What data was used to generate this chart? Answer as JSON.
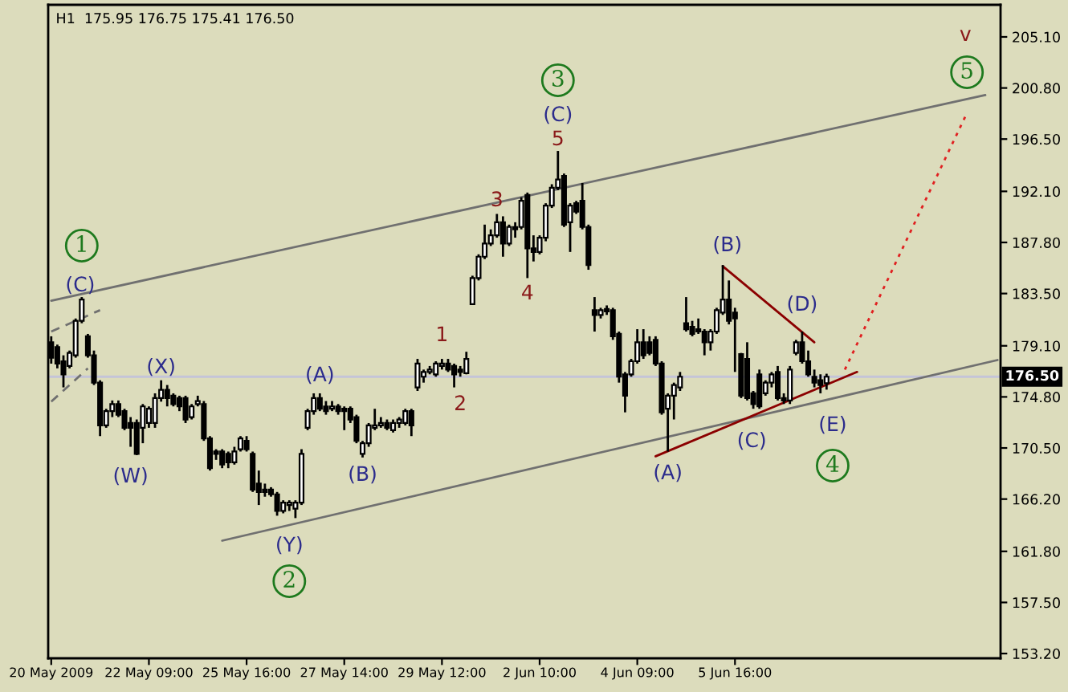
{
  "chart_data": {
    "type": "candlestick",
    "title": "H1  175.95 176.75 175.41 176.50",
    "categories": [
      "20 May 2009",
      null,
      null,
      null,
      null,
      null,
      null,
      null,
      null,
      null,
      null,
      null,
      null,
      null,
      null,
      null,
      "22 May 09:00",
      null,
      null,
      null,
      null,
      null,
      null,
      null,
      null,
      null,
      null,
      null,
      null,
      null,
      null,
      null,
      "25 May 16:00",
      null,
      null,
      null,
      null,
      null,
      null,
      null,
      null,
      null,
      null,
      null,
      null,
      null,
      null,
      null,
      "27 May 14:00",
      null,
      null,
      null,
      null,
      null,
      null,
      null,
      null,
      null,
      null,
      null,
      null,
      null,
      null,
      null,
      "29 May 12:00",
      null,
      null,
      null,
      null,
      null,
      null,
      null,
      null,
      null,
      null,
      null,
      null,
      null,
      null,
      null,
      "2 Jun 10:00",
      null,
      null,
      null,
      null,
      null,
      null,
      null,
      null,
      null,
      null,
      null,
      null,
      null,
      null,
      null,
      "4 Jun 09:00",
      null,
      null,
      null,
      null,
      null,
      null,
      null,
      null,
      null,
      null,
      null,
      null,
      null,
      null,
      null,
      "5 Jun 16:00",
      null,
      null,
      null,
      null,
      null,
      null,
      null,
      null,
      null,
      null,
      null,
      null,
      null,
      null,
      null,
      null,
      null,
      null,
      null,
      null,
      null,
      null,
      null,
      null,
      null,
      null,
      null,
      null,
      null,
      null,
      null,
      null,
      null,
      null,
      null,
      null,
      null,
      null,
      null,
      null,
      null,
      null,
      null
    ],
    "ohlc": [
      [
        179.4,
        179.9,
        177.6,
        178.1
      ],
      [
        179.0,
        179.2,
        177.2,
        177.6
      ],
      [
        177.8,
        178.3,
        175.6,
        176.7
      ],
      [
        177.4,
        178.7,
        177.2,
        178.5
      ],
      [
        178.3,
        181.4,
        178.1,
        181.2
      ],
      [
        181.2,
        183.2,
        181.0,
        183.0
      ],
      [
        179.9,
        180.1,
        178.1,
        178.3
      ],
      [
        178.3,
        178.7,
        175.8,
        176.0
      ],
      [
        176.0,
        176.2,
        171.5,
        172.4
      ],
      [
        172.4,
        173.8,
        172.2,
        173.6
      ],
      [
        173.6,
        174.5,
        173.1,
        174.2
      ],
      [
        174.2,
        174.5,
        173.1,
        173.3
      ],
      [
        173.6,
        173.8,
        172.0,
        172.2
      ],
      [
        172.6,
        173.1,
        170.6,
        172.2
      ],
      [
        172.6,
        172.9,
        169.9,
        170.0
      ],
      [
        172.2,
        174.2,
        170.9,
        174.0
      ],
      [
        172.6,
        174.0,
        172.2,
        173.8
      ],
      [
        172.6,
        175.1,
        172.2,
        174.7
      ],
      [
        174.7,
        176.2,
        174.4,
        175.4
      ],
      [
        175.4,
        175.8,
        174.0,
        174.7
      ],
      [
        174.9,
        175.1,
        174.0,
        174.2
      ],
      [
        174.7,
        174.9,
        173.6,
        174.0
      ],
      [
        174.7,
        174.9,
        172.6,
        172.9
      ],
      [
        173.1,
        174.2,
        172.9,
        174.0
      ],
      [
        174.2,
        174.9,
        174.0,
        174.45
      ],
      [
        174.2,
        174.45,
        171.1,
        171.3
      ],
      [
        171.3,
        171.5,
        168.6,
        168.8
      ],
      [
        170.2,
        170.4,
        169.5,
        170.0
      ],
      [
        170.2,
        170.4,
        168.8,
        169.1
      ],
      [
        170.0,
        170.2,
        168.8,
        169.3
      ],
      [
        169.3,
        170.6,
        169.1,
        170.2
      ],
      [
        170.4,
        171.5,
        170.2,
        171.3
      ],
      [
        171.1,
        171.5,
        170.2,
        170.4
      ],
      [
        170.0,
        170.2,
        166.8,
        167.0
      ],
      [
        167.5,
        168.6,
        165.7,
        166.8
      ],
      [
        167.0,
        167.5,
        166.4,
        166.8
      ],
      [
        167.0,
        167.2,
        166.4,
        166.6
      ],
      [
        166.6,
        166.8,
        164.8,
        165.2
      ],
      [
        165.2,
        166.1,
        165.0,
        165.9
      ],
      [
        165.7,
        166.1,
        165.2,
        165.9
      ],
      [
        165.4,
        166.1,
        164.6,
        165.9
      ],
      [
        165.9,
        170.4,
        165.7,
        170.0
      ],
      [
        172.2,
        173.8,
        172.0,
        173.6
      ],
      [
        173.6,
        175.1,
        173.3,
        174.7
      ],
      [
        174.7,
        175.1,
        173.6,
        173.8
      ],
      [
        174.0,
        174.45,
        173.3,
        173.6
      ],
      [
        173.8,
        174.45,
        173.6,
        174.0
      ],
      [
        174.0,
        174.2,
        173.3,
        173.6
      ],
      [
        173.8,
        174.0,
        172.0,
        173.6
      ],
      [
        173.8,
        174.0,
        172.6,
        172.9
      ],
      [
        173.1,
        173.3,
        170.9,
        171.1
      ],
      [
        170.0,
        171.1,
        169.7,
        170.9
      ],
      [
        170.9,
        172.6,
        170.6,
        172.4
      ],
      [
        172.2,
        173.8,
        172.0,
        172.4
      ],
      [
        172.4,
        173.1,
        172.2,
        172.6
      ],
      [
        172.6,
        172.9,
        172.0,
        172.2
      ],
      [
        172.0,
        172.9,
        171.8,
        172.6
      ],
      [
        172.6,
        173.1,
        172.2,
        172.9
      ],
      [
        172.6,
        173.8,
        172.4,
        173.6
      ],
      [
        173.6,
        173.8,
        171.5,
        172.4
      ],
      [
        175.6,
        178.0,
        175.3,
        177.6
      ],
      [
        176.5,
        177.1,
        176.0,
        176.9
      ],
      [
        176.9,
        177.4,
        176.7,
        177.1
      ],
      [
        176.7,
        177.8,
        176.5,
        177.6
      ],
      [
        177.4,
        178.0,
        177.1,
        177.6
      ],
      [
        177.6,
        178.0,
        176.9,
        177.1
      ],
      [
        177.4,
        177.6,
        175.6,
        176.7
      ],
      [
        177.1,
        177.4,
        176.5,
        176.9
      ],
      [
        176.8,
        178.6,
        176.7,
        178.0
      ],
      [
        182.6,
        185.0,
        182.6,
        184.8
      ],
      [
        184.8,
        186.8,
        184.6,
        186.6
      ],
      [
        186.6,
        189.3,
        186.4,
        187.7
      ],
      [
        187.7,
        188.9,
        187.5,
        188.4
      ],
      [
        188.4,
        190.2,
        188.2,
        189.5
      ],
      [
        189.5,
        190.0,
        186.6,
        187.7
      ],
      [
        187.7,
        189.3,
        187.5,
        189.1
      ],
      [
        189.1,
        189.5,
        188.2,
        188.9
      ],
      [
        189.1,
        191.6,
        188.9,
        191.3
      ],
      [
        191.8,
        192.0,
        184.8,
        187.3
      ],
      [
        187.3,
        188.4,
        186.2,
        187.0
      ],
      [
        187.0,
        188.4,
        186.8,
        188.2
      ],
      [
        188.2,
        191.1,
        187.9,
        190.9
      ],
      [
        190.9,
        192.7,
        190.7,
        192.4
      ],
      [
        192.4,
        195.5,
        192.2,
        193.1
      ],
      [
        193.4,
        193.6,
        189.1,
        189.3
      ],
      [
        189.5,
        191.1,
        187.0,
        190.9
      ],
      [
        191.1,
        191.3,
        190.2,
        190.4
      ],
      [
        191.3,
        192.8,
        188.9,
        189.1
      ],
      [
        189.1,
        189.3,
        185.5,
        185.9
      ],
      [
        182.1,
        183.2,
        180.3,
        181.7
      ],
      [
        181.7,
        182.3,
        181.4,
        182.1
      ],
      [
        182.2,
        182.5,
        181.7,
        182.0
      ],
      [
        182.1,
        182.3,
        179.6,
        179.9
      ],
      [
        180.1,
        180.3,
        176.0,
        176.5
      ],
      [
        176.7,
        176.9,
        173.5,
        174.9
      ],
      [
        176.7,
        178.0,
        176.5,
        177.8
      ],
      [
        177.8,
        180.5,
        177.6,
        179.4
      ],
      [
        179.4,
        180.5,
        178.0,
        178.3
      ],
      [
        179.4,
        179.9,
        178.3,
        178.5
      ],
      [
        179.6,
        179.9,
        177.4,
        177.6
      ],
      [
        177.6,
        177.8,
        173.3,
        173.5
      ],
      [
        173.8,
        175.1,
        170.2,
        174.9
      ],
      [
        174.9,
        176.0,
        172.9,
        175.8
      ],
      [
        175.6,
        176.9,
        175.3,
        176.5
      ],
      [
        181.0,
        183.2,
        180.3,
        180.5
      ],
      [
        180.7,
        181.2,
        179.9,
        180.1
      ],
      [
        180.5,
        181.4,
        180.1,
        180.3
      ],
      [
        180.3,
        180.5,
        178.3,
        179.4
      ],
      [
        179.4,
        180.5,
        178.7,
        180.3
      ],
      [
        180.3,
        182.3,
        180.1,
        182.1
      ],
      [
        181.9,
        185.9,
        181.7,
        183.0
      ],
      [
        183.0,
        184.6,
        180.9,
        181.2
      ],
      [
        181.9,
        182.3,
        176.9,
        181.4
      ],
      [
        178.4,
        178.5,
        174.7,
        174.9
      ],
      [
        178.0,
        179.4,
        174.5,
        174.7
      ],
      [
        175.1,
        175.3,
        173.8,
        174.2
      ],
      [
        176.7,
        177.1,
        173.8,
        174.0
      ],
      [
        175.1,
        176.2,
        174.9,
        176.0
      ],
      [
        176.0,
        176.9,
        175.6,
        176.7
      ],
      [
        176.9,
        177.4,
        174.5,
        174.7
      ],
      [
        174.7,
        175.1,
        174.2,
        174.5
      ],
      [
        174.5,
        177.4,
        174.2,
        177.1
      ],
      [
        178.5,
        179.6,
        178.3,
        179.4
      ],
      [
        179.4,
        180.3,
        177.6,
        177.8
      ],
      [
        177.8,
        178.7,
        176.5,
        176.7
      ],
      [
        176.5,
        177.1,
        175.6,
        176.0
      ],
      [
        176.2,
        176.7,
        175.1,
        175.8
      ],
      [
        175.95,
        176.75,
        175.41,
        176.5
      ],
      null,
      null,
      null,
      null,
      null,
      null,
      null,
      null,
      null,
      null,
      null,
      null,
      null,
      null,
      null,
      null,
      null,
      null,
      null,
      null,
      null,
      null,
      null,
      null,
      null,
      null,
      null,
      null
    ],
    "series": [
      {
        "type": "line",
        "color": "#707070",
        "line_style": "solid",
        "values": [
          182.9,
          null,
          null,
          null,
          null,
          null,
          null,
          null,
          null,
          null,
          null,
          null,
          null,
          null,
          null,
          null,
          null,
          null,
          null,
          null,
          null,
          null,
          null,
          null,
          null,
          null,
          null,
          null,
          null,
          null,
          null,
          null,
          null,
          null,
          null,
          null,
          null,
          null,
          null,
          null,
          null,
          null,
          null,
          null,
          null,
          null,
          null,
          null,
          null,
          null,
          null,
          null,
          null,
          null,
          null,
          null,
          null,
          null,
          null,
          null,
          null,
          null,
          null,
          null,
          null,
          null,
          null,
          null,
          null,
          null,
          null,
          null,
          null,
          null,
          null,
          null,
          null,
          null,
          null,
          null,
          null,
          null,
          null,
          null,
          null,
          null,
          null,
          null,
          null,
          null,
          null,
          null,
          null,
          null,
          null,
          null,
          null,
          null,
          null,
          null,
          null,
          null,
          null,
          null,
          null,
          null,
          null,
          null,
          null,
          null,
          null,
          null,
          null,
          null,
          null,
          null,
          null,
          null,
          null,
          null,
          null,
          null,
          null,
          null,
          null,
          null,
          null,
          null,
          null,
          null,
          null,
          null,
          null,
          null,
          null,
          null,
          null,
          null,
          null,
          null,
          null,
          null,
          null,
          null,
          null,
          null,
          null,
          null,
          null,
          null,
          null,
          null,
          null,
          200.2,
          null,
          null
        ]
      },
      {
        "type": "line",
        "color": "#707070",
        "line_style": "solid",
        "values": [
          null,
          null,
          null,
          null,
          null,
          null,
          null,
          null,
          null,
          null,
          null,
          null,
          null,
          null,
          null,
          null,
          null,
          null,
          null,
          null,
          null,
          null,
          null,
          null,
          null,
          null,
          null,
          null,
          162.7,
          null,
          null,
          null,
          null,
          null,
          null,
          null,
          null,
          null,
          null,
          null,
          null,
          null,
          null,
          null,
          null,
          null,
          null,
          null,
          null,
          null,
          null,
          null,
          null,
          null,
          null,
          null,
          null,
          null,
          null,
          null,
          null,
          null,
          null,
          null,
          null,
          null,
          null,
          null,
          null,
          null,
          null,
          null,
          null,
          null,
          null,
          null,
          null,
          null,
          null,
          null,
          null,
          null,
          null,
          null,
          null,
          null,
          null,
          null,
          null,
          null,
          null,
          null,
          null,
          null,
          null,
          null,
          null,
          null,
          null,
          null,
          null,
          null,
          null,
          null,
          null,
          null,
          null,
          null,
          null,
          null,
          null,
          null,
          null,
          null,
          null,
          null,
          null,
          null,
          null,
          null,
          null,
          null,
          null,
          null,
          null,
          null,
          null,
          null,
          null,
          null,
          null,
          null,
          null,
          null,
          null,
          null,
          null,
          null,
          null,
          null,
          null,
          null,
          null,
          null,
          null,
          null,
          null,
          null,
          null,
          null,
          null,
          null,
          null,
          null,
          null,
          177.9
        ]
      },
      {
        "type": "line",
        "color": "#707070",
        "line_style": "dashed",
        "values": [
          180.3,
          null,
          null,
          null,
          null,
          null,
          null,
          null,
          182.1,
          null,
          null,
          null,
          null,
          null,
          null,
          null,
          null,
          null,
          null,
          null,
          null,
          null,
          null,
          null,
          null,
          null,
          null,
          null,
          null,
          null,
          null,
          null,
          null,
          null,
          null,
          null,
          null,
          null,
          null,
          null,
          null,
          null,
          null,
          null,
          null,
          null,
          null,
          null,
          null,
          null,
          null,
          null,
          null,
          null,
          null,
          null,
          null,
          null,
          null,
          null,
          null,
          null,
          null,
          null,
          null,
          null,
          null,
          null,
          null,
          null,
          null,
          null,
          null,
          null,
          null,
          null,
          null,
          null,
          null,
          null,
          null,
          null,
          null,
          null,
          null,
          null,
          null,
          null,
          null,
          null,
          null,
          null,
          null,
          null,
          null,
          null,
          null,
          null,
          null,
          null,
          null,
          null,
          null,
          null,
          null,
          null,
          null,
          null,
          null,
          null,
          null,
          null,
          null,
          null,
          null,
          null,
          null,
          null,
          null,
          null,
          null,
          null,
          null,
          null,
          null,
          null,
          null,
          null,
          null,
          null,
          null,
          null,
          null,
          null,
          null,
          null,
          null,
          null,
          null,
          null,
          null,
          null,
          null,
          null,
          null,
          null,
          null,
          null,
          null,
          null,
          null,
          null,
          null,
          null,
          null,
          null
        ]
      },
      {
        "type": "line",
        "color": "#707070",
        "line_style": "dashed",
        "values": [
          174.4,
          null,
          null,
          null,
          null,
          null,
          177.2,
          null,
          null,
          null,
          null,
          null,
          null,
          null,
          null,
          null,
          null,
          null,
          null,
          null,
          null,
          null,
          null,
          null,
          null,
          null,
          null,
          null,
          null,
          null,
          null,
          null,
          null,
          null,
          null,
          null,
          null,
          null,
          null,
          null,
          null,
          null,
          null,
          null,
          null,
          null,
          null,
          null,
          null,
          null,
          null,
          null,
          null,
          null,
          null,
          null,
          null,
          null,
          null,
          null,
          null,
          null,
          null,
          null,
          null,
          null,
          null,
          null,
          null,
          null,
          null,
          null,
          null,
          null,
          null,
          null,
          null,
          null,
          null,
          null,
          null,
          null,
          null,
          null,
          null,
          null,
          null,
          null,
          null,
          null,
          null,
          null,
          null,
          null,
          null,
          null,
          null,
          null,
          null,
          null,
          null,
          null,
          null,
          null,
          null,
          null,
          null,
          null,
          null,
          null,
          null,
          null,
          null,
          null,
          null,
          null,
          null,
          null,
          null,
          null,
          null,
          null,
          null,
          null,
          null,
          null,
          null,
          null,
          null,
          null,
          null,
          null,
          null,
          null,
          null,
          null,
          null,
          null,
          null,
          null,
          null,
          null,
          null,
          null,
          null,
          null,
          null,
          null,
          null,
          null,
          null,
          null,
          null,
          null,
          null,
          null
        ]
      },
      {
        "type": "line",
        "color": "#8b0000",
        "line_style": "solid",
        "values": [
          null,
          null,
          null,
          null,
          null,
          null,
          null,
          null,
          null,
          null,
          null,
          null,
          null,
          null,
          null,
          null,
          null,
          null,
          null,
          null,
          null,
          null,
          null,
          null,
          null,
          null,
          null,
          null,
          null,
          null,
          null,
          null,
          null,
          null,
          null,
          null,
          null,
          null,
          null,
          null,
          null,
          null,
          null,
          null,
          null,
          null,
          null,
          null,
          null,
          null,
          null,
          null,
          null,
          null,
          null,
          null,
          null,
          null,
          null,
          null,
          null,
          null,
          null,
          null,
          null,
          null,
          null,
          null,
          null,
          null,
          null,
          null,
          null,
          null,
          null,
          null,
          null,
          null,
          null,
          null,
          null,
          null,
          null,
          null,
          null,
          null,
          null,
          null,
          null,
          null,
          null,
          null,
          null,
          null,
          null,
          null,
          null,
          null,
          null,
          null,
          null,
          null,
          null,
          null,
          null,
          null,
          null,
          null,
          null,
          null,
          185.8,
          null,
          null,
          null,
          null,
          null,
          null,
          null,
          null,
          null,
          null,
          null,
          null,
          null,
          null,
          179.4,
          null,
          null,
          null,
          null,
          null,
          null,
          null,
          null,
          null,
          null,
          null,
          null,
          null,
          null,
          null,
          null,
          null,
          null,
          null,
          null,
          null,
          null,
          null,
          null,
          null,
          null,
          null,
          null,
          null,
          null
        ]
      },
      {
        "type": "line",
        "color": "#8b0000",
        "line_style": "solid",
        "values": [
          null,
          null,
          null,
          null,
          null,
          null,
          null,
          null,
          null,
          null,
          null,
          null,
          null,
          null,
          null,
          null,
          null,
          null,
          null,
          null,
          null,
          null,
          null,
          null,
          null,
          null,
          null,
          null,
          null,
          null,
          null,
          null,
          null,
          null,
          null,
          null,
          null,
          null,
          null,
          null,
          null,
          null,
          null,
          null,
          null,
          null,
          null,
          null,
          null,
          null,
          null,
          null,
          null,
          null,
          null,
          null,
          null,
          null,
          null,
          null,
          null,
          null,
          null,
          null,
          null,
          null,
          null,
          null,
          null,
          null,
          null,
          null,
          null,
          null,
          null,
          null,
          null,
          null,
          null,
          null,
          null,
          null,
          null,
          null,
          null,
          null,
          null,
          null,
          null,
          null,
          null,
          null,
          null,
          null,
          null,
          null,
          null,
          null,
          null,
          169.8,
          null,
          null,
          null,
          null,
          null,
          null,
          null,
          null,
          null,
          null,
          null,
          null,
          null,
          null,
          null,
          null,
          null,
          null,
          null,
          null,
          null,
          null,
          null,
          null,
          null,
          null,
          null,
          null,
          null,
          null,
          null,
          null,
          176.9,
          null,
          null,
          null,
          null,
          null,
          null,
          null,
          null,
          null,
          null,
          null,
          null,
          null,
          null,
          null,
          null,
          null,
          null,
          null,
          null,
          null,
          null,
          null
        ]
      },
      {
        "type": "line",
        "color": "#e02020",
        "line_style": "dotted",
        "values": [
          null,
          null,
          null,
          null,
          null,
          null,
          null,
          null,
          null,
          null,
          null,
          null,
          null,
          null,
          null,
          null,
          null,
          null,
          null,
          null,
          null,
          null,
          null,
          null,
          null,
          null,
          null,
          null,
          null,
          null,
          null,
          null,
          null,
          null,
          null,
          null,
          null,
          null,
          null,
          null,
          null,
          null,
          null,
          null,
          null,
          null,
          null,
          null,
          null,
          null,
          null,
          null,
          null,
          null,
          null,
          null,
          null,
          null,
          null,
          null,
          null,
          null,
          null,
          null,
          null,
          null,
          null,
          null,
          null,
          null,
          null,
          null,
          null,
          null,
          null,
          null,
          null,
          null,
          null,
          null,
          null,
          null,
          null,
          null,
          null,
          null,
          null,
          null,
          null,
          null,
          null,
          null,
          null,
          null,
          null,
          null,
          null,
          null,
          null,
          null,
          null,
          null,
          null,
          null,
          null,
          null,
          null,
          null,
          null,
          null,
          null,
          null,
          null,
          null,
          null,
          null,
          null,
          null,
          null,
          null,
          null,
          null,
          null,
          null,
          null,
          null,
          null,
          null,
          null,
          null,
          177.1,
          null,
          null,
          null,
          null,
          null,
          null,
          null,
          null,
          null,
          null,
          null,
          null,
          null,
          null,
          null,
          null,
          null,
          null,
          null,
          198.7,
          null,
          null,
          null,
          null,
          null
        ]
      }
    ],
    "ref_lines": [
      {
        "axis": "y",
        "value": 176.5,
        "label": "176.50",
        "color": "#c4c4d8"
      }
    ],
    "annotations": [
      "1",
      "(C)",
      "(X)",
      "(W)",
      "(A)",
      "(B)",
      "(Y)",
      "2",
      "3",
      "(C)",
      "5",
      "3",
      "4",
      "1",
      "2",
      "(A)",
      "(B)",
      "(C)",
      "(D)",
      "(E)",
      "4",
      "v",
      "5"
    ],
    "ylim": [
      152.8,
      207.8
    ],
    "yticks": [
      {
        "value": 153.2,
        "label": "153.20"
      },
      {
        "value": 157.5,
        "label": "157.50"
      },
      {
        "value": 161.8,
        "label": "161.80"
      },
      {
        "value": 166.2,
        "label": "166.20"
      },
      {
        "value": 170.5,
        "label": "170.50"
      },
      {
        "value": 174.8,
        "label": "174.80"
      },
      {
        "value": 179.1,
        "label": "179.10"
      },
      {
        "value": 183.5,
        "label": "183.50"
      },
      {
        "value": 187.8,
        "label": "187.80"
      },
      {
        "value": 192.1,
        "label": "192.10"
      },
      {
        "value": 196.5,
        "label": "196.50"
      },
      {
        "value": 200.8,
        "label": "200.80"
      },
      {
        "value": 205.1,
        "label": "205.10"
      }
    ]
  }
}
